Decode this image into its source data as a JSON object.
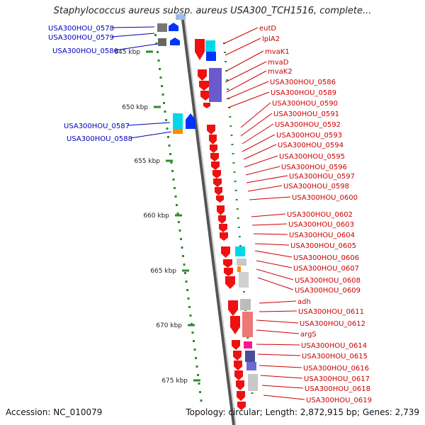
{
  "header": {
    "title": "Staphylococcus aureus subsp. aureus USA300_TCH1516, complete..."
  },
  "footer": {
    "accession": "Accession: NC_010079",
    "summary": "Topology: circular; Length: 2,872,915 bp; Genes: 2,739"
  },
  "colors": {
    "forward_label": "#cc0000",
    "reverse_label": "#0000bb",
    "tick": "#2e8b2e",
    "genome_line": "#7a7a7a"
  },
  "kbp_labels": [
    "645 kbp",
    "650 kbp",
    "655 kbp",
    "660 kbp",
    "665 kbp",
    "670 kbp",
    "675 kbp"
  ],
  "reverse_genes": [
    "USA300HOU_0578",
    "USA300HOU_0579",
    "USA300HOU_0580",
    "USA300HOU_0587",
    "USA300HOU_0588"
  ],
  "forward_genes": [
    "eutD",
    "lplA2",
    "mvaK1",
    "mvaD",
    "mvaK2",
    "USA300HOU_0586",
    "USA300HOU_0589",
    "USA300HOU_0590",
    "USA300HOU_0591",
    "USA300HOU_0592",
    "USA300HOU_0593",
    "USA300HOU_0594",
    "USA300HOU_0595",
    "USA300HOU_0596",
    "USA300HOU_0597",
    "USA300HOU_0598",
    "USA300HOU_0600",
    "USA300HOU_0602",
    "USA300HOU_0603",
    "USA300HOU_0604",
    "USA300HOU_0605",
    "USA300HOU_0606",
    "USA300HOU_0607",
    "USA300HOU_0608",
    "USA300HOU_0609",
    "adh",
    "USA300HOU_0611",
    "USA300HOU_0612",
    "argS",
    "USA300HOU_0614",
    "USA300HOU_0615",
    "USA300HOU_0616",
    "USA300HOU_0617",
    "USA300HOU_0618",
    "USA300HOU_0619"
  ]
}
